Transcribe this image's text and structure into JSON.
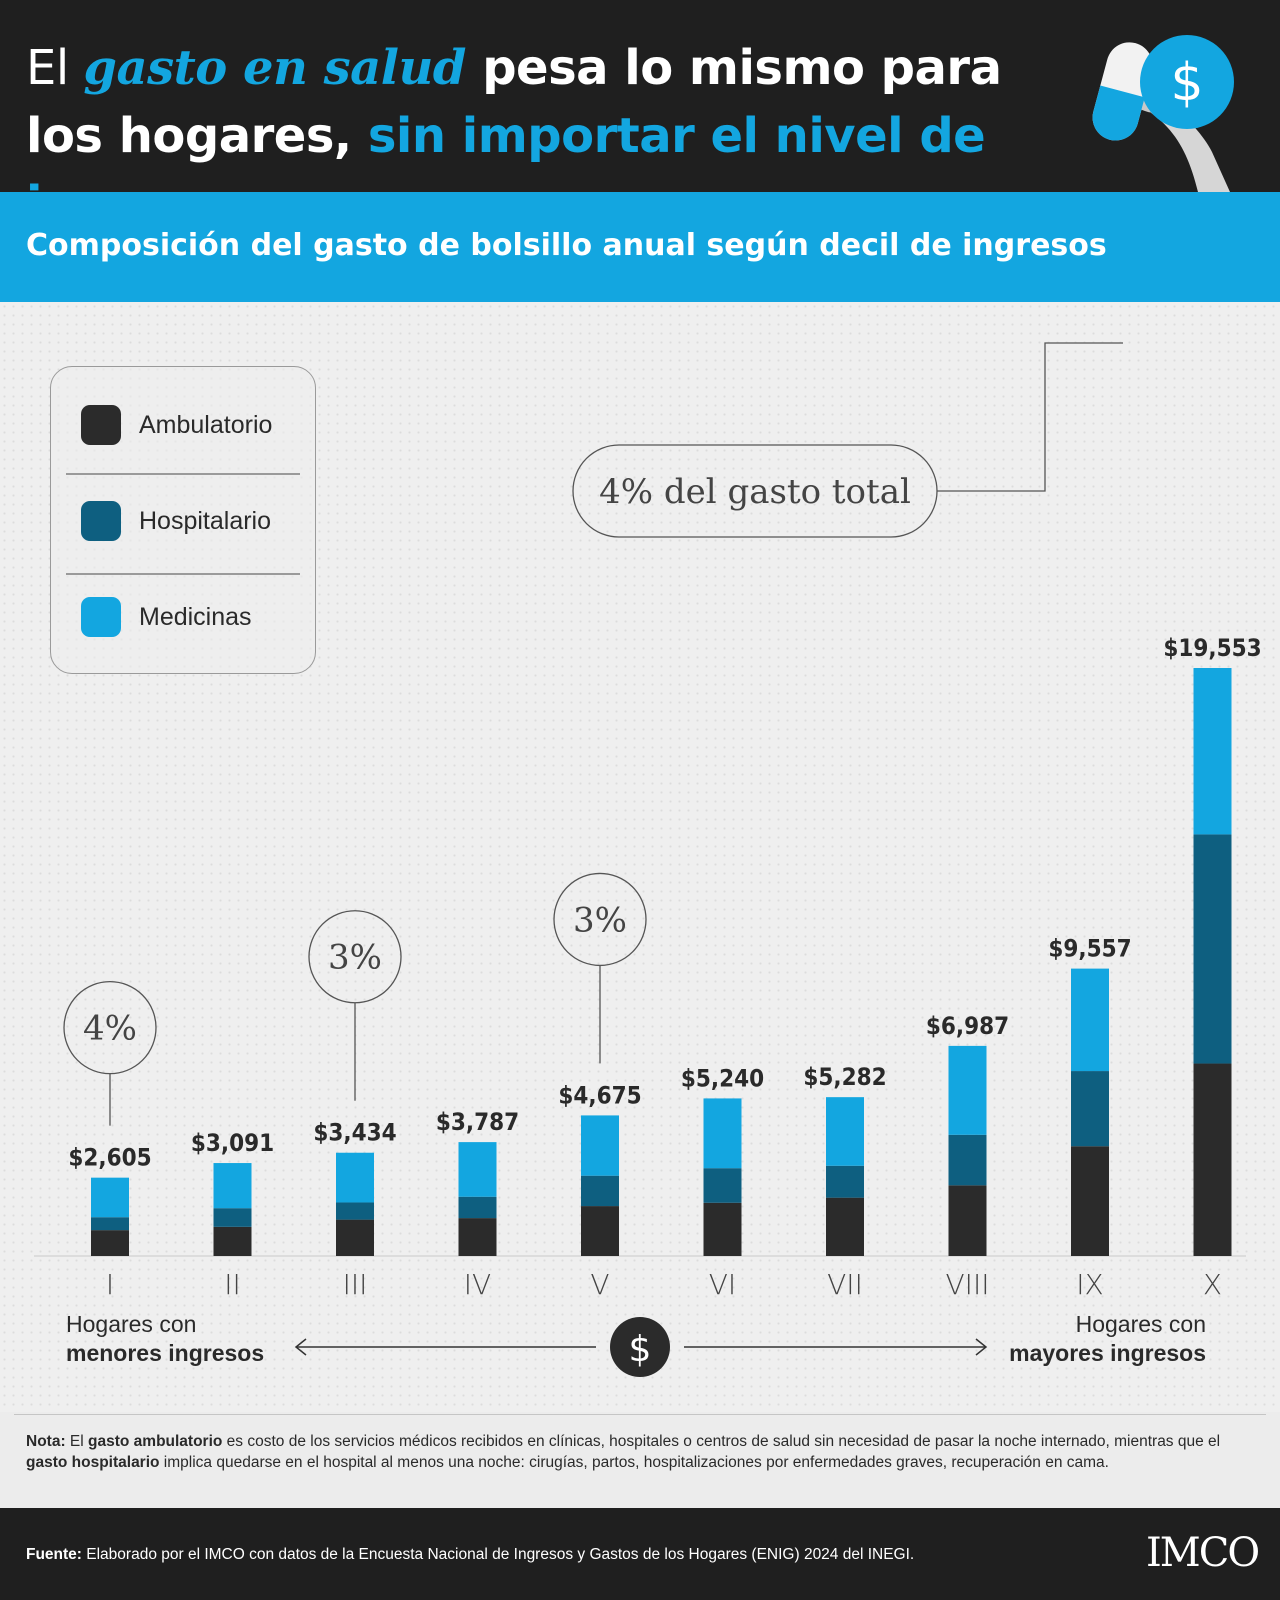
{
  "header": {
    "title_part1": "El ",
    "title_em": "gasto en salud",
    "title_part2": " pesa lo mismo para los hogares, ",
    "title_blue": "sin importar el nivel de ingreso"
  },
  "subtitle": "Composición del gasto de bolsillo anual según decil de ingresos",
  "legend": [
    {
      "label": "Ambulatorio",
      "color": "#2b2b2b"
    },
    {
      "label": "Hospitalario",
      "color": "#0e5f80"
    },
    {
      "label": "Medicinas",
      "color": "#13a6e0"
    }
  ],
  "colors": {
    "ambulatorio": "#2b2b2b",
    "hospitalario": "#0e5f80",
    "medicinas": "#13a6e0",
    "accent": "#13a6e0",
    "dark": "#1f1f1f"
  },
  "chart_data": {
    "type": "bar",
    "stacked": true,
    "title": "Composición del gasto de bolsillo anual según decil de ingresos",
    "categories": [
      "I",
      "II",
      "III",
      "IV",
      "V",
      "VI",
      "VII",
      "VIII",
      "IX",
      "X"
    ],
    "totals": [
      2605,
      3091,
      3434,
      3787,
      4675,
      5240,
      5282,
      6987,
      9557,
      19553
    ],
    "total_labels": [
      "$2,605",
      "$3,091",
      "$3,434",
      "$3,787",
      "$4,675",
      "$5,240",
      "$5,282",
      "$6,987",
      "$9,557",
      "$19,553"
    ],
    "series": [
      {
        "name": "Ambulatorio",
        "values": [
          860,
          970,
          1210,
          1260,
          1660,
          1770,
          1940,
          2350,
          3650,
          6400
        ]
      },
      {
        "name": "Hospitalario",
        "values": [
          430,
          620,
          570,
          710,
          1010,
          1150,
          1060,
          1680,
          2500,
          7620
        ]
      },
      {
        "name": "Medicinas",
        "values": [
          1315,
          1501,
          1654,
          1817,
          2005,
          2320,
          2282,
          2957,
          3407,
          5533
        ]
      }
    ],
    "ylim": [
      0,
      19553
    ],
    "annotations": [
      {
        "category": "I",
        "text": "4%"
      },
      {
        "category": "III",
        "text": "3%"
      },
      {
        "category": "V",
        "text": "3%"
      },
      {
        "category": "X",
        "text": "4% del gasto total"
      }
    ],
    "axis_left_label_1": "Hogares con",
    "axis_left_label_2": "menores ingresos",
    "axis_right_label_1": "Hogares con",
    "axis_right_label_2": "mayores ingresos",
    "axis_icon": "dollar-icon"
  },
  "note": {
    "label": "Nota:",
    "t1": " El ",
    "b1": "gasto ambulatorio",
    "t2": " es costo de los servicios médicos recibidos en clínicas, hospitales o centros de salud sin necesidad de pasar la noche internado, mientras que el ",
    "b2": "gasto hospitalario",
    "t3": " implica quedarse en el hospital al menos una noche: cirugías, partos, hospitalizaciones por enfermedades graves, recuperación en cama."
  },
  "footer": {
    "label": "Fuente:",
    "text": " Elaborado por el IMCO con datos de la Encuesta Nacional de Ingresos y Gastos de los Hogares (ENIG) 2024 del INEGI.",
    "logo": "IMCO"
  }
}
